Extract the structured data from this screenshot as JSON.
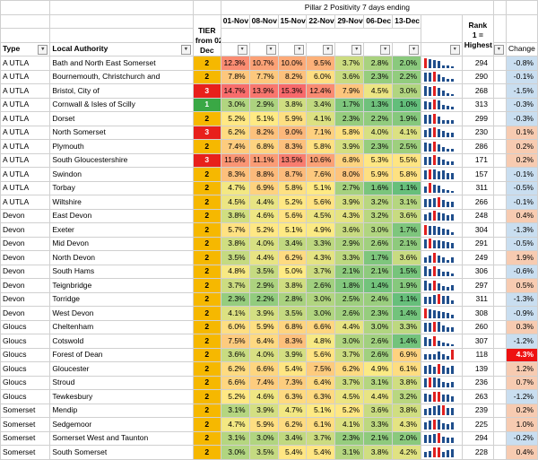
{
  "header": {
    "title": "Pillar 2 Positivity 7 days ending",
    "tier_label_lines": [
      "TIER",
      "from  02",
      "Dec"
    ],
    "rank_label_lines": [
      "Rank",
      "1 =",
      "Highest"
    ],
    "dates": [
      "01-Nov",
      "08-Nov",
      "15-Nov",
      "22-Nov",
      "29-Nov",
      "06-Dec",
      "13-Dec"
    ],
    "col_type": "Type",
    "col_la": "Local Authority",
    "col_change": "Change"
  },
  "colors": {
    "tier1": "#3aa845",
    "tier2": "#f6b800",
    "tier3": "#e8201b",
    "change_pos": "#f7cbb1",
    "change_neg": "#c9def0",
    "change_strong": "#ee1111",
    "spark_bar": "#1f4e8c",
    "spark_high": "#e02020"
  },
  "rows": [
    {
      "type": "A UTLA",
      "la": "Bath and North East Somerset",
      "tier": "2",
      "vals": [
        "12.3%",
        "10.7%",
        "10.0%",
        "9.5%",
        "3.7%",
        "2.8%",
        "2.0%"
      ],
      "rank": "294",
      "change": "-0.8%"
    },
    {
      "type": "A UTLA",
      "la": "Bournemouth, Christchurch and",
      "tier": "2",
      "vals": [
        "7.8%",
        "7.7%",
        "8.2%",
        "6.0%",
        "3.6%",
        "2.3%",
        "2.2%"
      ],
      "rank": "290",
      "change": "-0.1%"
    },
    {
      "type": "A UTLA",
      "la": "Bristol, City of",
      "tier": "3",
      "vals": [
        "14.7%",
        "13.9%",
        "15.3%",
        "12.4%",
        "7.9%",
        "4.5%",
        "3.0%"
      ],
      "rank": "268",
      "change": "-1.5%"
    },
    {
      "type": "A UTLA",
      "la": "Cornwall & Isles of Scilly",
      "tier": "1",
      "vals": [
        "3.0%",
        "2.9%",
        "3.8%",
        "3.4%",
        "1.7%",
        "1.3%",
        "1.0%"
      ],
      "rank": "313",
      "change": "-0.3%"
    },
    {
      "type": "A UTLA",
      "la": "Dorset",
      "tier": "2",
      "vals": [
        "5.2%",
        "5.1%",
        "5.9%",
        "4.1%",
        "2.3%",
        "2.2%",
        "1.9%"
      ],
      "rank": "299",
      "change": "-0.3%"
    },
    {
      "type": "A UTLA",
      "la": "North Somerset",
      "tier": "3",
      "vals": [
        "6.2%",
        "8.2%",
        "9.0%",
        "7.1%",
        "5.8%",
        "4.0%",
        "4.1%"
      ],
      "rank": "230",
      "change": "0.1%"
    },
    {
      "type": "A UTLA",
      "la": "Plymouth",
      "tier": "2",
      "vals": [
        "7.4%",
        "6.8%",
        "8.3%",
        "5.8%",
        "3.9%",
        "2.3%",
        "2.5%"
      ],
      "rank": "286",
      "change": "0.2%"
    },
    {
      "type": "A UTLA",
      "la": "South Gloucestershire",
      "tier": "3",
      "vals": [
        "11.6%",
        "11.1%",
        "13.5%",
        "10.6%",
        "6.8%",
        "5.3%",
        "5.5%"
      ],
      "rank": "171",
      "change": "0.2%"
    },
    {
      "type": "A UTLA",
      "la": "Swindon",
      "tier": "2",
      "vals": [
        "8.3%",
        "8.8%",
        "8.7%",
        "7.6%",
        "8.0%",
        "5.9%",
        "5.8%"
      ],
      "rank": "157",
      "change": "-0.1%"
    },
    {
      "type": "A UTLA",
      "la": "Torbay",
      "tier": "2",
      "vals": [
        "4.7%",
        "6.9%",
        "5.8%",
        "5.1%",
        "2.7%",
        "1.6%",
        "1.1%"
      ],
      "rank": "311",
      "change": "-0.5%"
    },
    {
      "type": "A UTLA",
      "la": "Wiltshire",
      "tier": "2",
      "vals": [
        "4.5%",
        "4.4%",
        "5.2%",
        "5.6%",
        "3.9%",
        "3.2%",
        "3.1%"
      ],
      "rank": "266",
      "change": "-0.1%"
    },
    {
      "type": "Devon",
      "la": "East Devon",
      "tier": "2",
      "vals": [
        "3.8%",
        "4.6%",
        "5.6%",
        "4.5%",
        "4.3%",
        "3.2%",
        "3.6%"
      ],
      "rank": "248",
      "change": "0.4%"
    },
    {
      "type": "Devon",
      "la": "Exeter",
      "tier": "2",
      "vals": [
        "5.7%",
        "5.2%",
        "5.1%",
        "4.9%",
        "3.6%",
        "3.0%",
        "1.7%"
      ],
      "rank": "304",
      "change": "-1.3%"
    },
    {
      "type": "Devon",
      "la": "Mid Devon",
      "tier": "2",
      "vals": [
        "3.8%",
        "4.0%",
        "3.4%",
        "3.3%",
        "2.9%",
        "2.6%",
        "2.1%"
      ],
      "rank": "291",
      "change": "-0.5%"
    },
    {
      "type": "Devon",
      "la": "North Devon",
      "tier": "2",
      "vals": [
        "3.5%",
        "4.4%",
        "6.2%",
        "4.3%",
        "3.3%",
        "1.7%",
        "3.6%"
      ],
      "rank": "249",
      "change": "1.9%"
    },
    {
      "type": "Devon",
      "la": "South Hams",
      "tier": "2",
      "vals": [
        "4.8%",
        "3.5%",
        "5.0%",
        "3.7%",
        "2.1%",
        "2.1%",
        "1.5%"
      ],
      "rank": "306",
      "change": "-0.6%"
    },
    {
      "type": "Devon",
      "la": "Teignbridge",
      "tier": "2",
      "vals": [
        "3.7%",
        "2.9%",
        "3.8%",
        "2.6%",
        "1.8%",
        "1.4%",
        "1.9%"
      ],
      "rank": "297",
      "change": "0.5%"
    },
    {
      "type": "Devon",
      "la": "Torridge",
      "tier": "2",
      "vals": [
        "2.3%",
        "2.2%",
        "2.8%",
        "3.0%",
        "2.5%",
        "2.4%",
        "1.1%"
      ],
      "rank": "311",
      "change": "-1.3%"
    },
    {
      "type": "Devon",
      "la": "West Devon",
      "tier": "2",
      "vals": [
        "4.1%",
        "3.9%",
        "3.5%",
        "3.0%",
        "2.6%",
        "2.3%",
        "1.4%"
      ],
      "rank": "308",
      "change": "-0.9%"
    },
    {
      "type": "Gloucs",
      "la": "Cheltenham",
      "tier": "2",
      "vals": [
        "6.0%",
        "5.9%",
        "6.8%",
        "6.6%",
        "4.4%",
        "3.0%",
        "3.3%"
      ],
      "rank": "260",
      "change": "0.3%"
    },
    {
      "type": "Gloucs",
      "la": "Cotswold",
      "tier": "2",
      "vals": [
        "7.5%",
        "6.4%",
        "8.3%",
        "4.8%",
        "3.0%",
        "2.6%",
        "1.4%"
      ],
      "rank": "307",
      "change": "-1.2%"
    },
    {
      "type": "Gloucs",
      "la": "Forest of Dean",
      "tier": "2",
      "vals": [
        "3.6%",
        "4.0%",
        "3.9%",
        "5.6%",
        "3.7%",
        "2.6%",
        "6.9%"
      ],
      "rank": "118",
      "change": "4.3%"
    },
    {
      "type": "Gloucs",
      "la": "Gloucester",
      "tier": "2",
      "vals": [
        "6.2%",
        "6.6%",
        "5.4%",
        "7.5%",
        "6.2%",
        "4.9%",
        "6.1%"
      ],
      "rank": "139",
      "change": "1.2%"
    },
    {
      "type": "Gloucs",
      "la": "Stroud",
      "tier": "2",
      "vals": [
        "6.6%",
        "7.4%",
        "7.3%",
        "6.4%",
        "3.7%",
        "3.1%",
        "3.8%"
      ],
      "rank": "236",
      "change": "0.7%"
    },
    {
      "type": "Gloucs",
      "la": "Tewkesbury",
      "tier": "2",
      "vals": [
        "5.2%",
        "4.6%",
        "6.3%",
        "6.3%",
        "4.5%",
        "4.4%",
        "3.2%"
      ],
      "rank": "263",
      "change": "-1.2%"
    },
    {
      "type": "Somerset",
      "la": "Mendip",
      "tier": "2",
      "vals": [
        "3.1%",
        "3.9%",
        "4.7%",
        "5.1%",
        "5.2%",
        "3.6%",
        "3.8%"
      ],
      "rank": "239",
      "change": "0.2%"
    },
    {
      "type": "Somerset",
      "la": "Sedgemoor",
      "tier": "2",
      "vals": [
        "4.7%",
        "5.9%",
        "6.2%",
        "6.1%",
        "4.1%",
        "3.3%",
        "4.3%"
      ],
      "rank": "225",
      "change": "1.0%"
    },
    {
      "type": "Somerset",
      "la": "Somerset West and Taunton",
      "tier": "2",
      "vals": [
        "3.1%",
        "3.0%",
        "3.4%",
        "3.7%",
        "2.3%",
        "2.1%",
        "2.0%"
      ],
      "rank": "294",
      "change": "-0.2%"
    },
    {
      "type": "Somerset",
      "la": "South Somerset",
      "tier": "2",
      "vals": [
        "3.0%",
        "3.5%",
        "5.4%",
        "5.4%",
        "3.1%",
        "3.8%",
        "4.2%"
      ],
      "rank": "228",
      "change": "0.4%"
    }
  ]
}
